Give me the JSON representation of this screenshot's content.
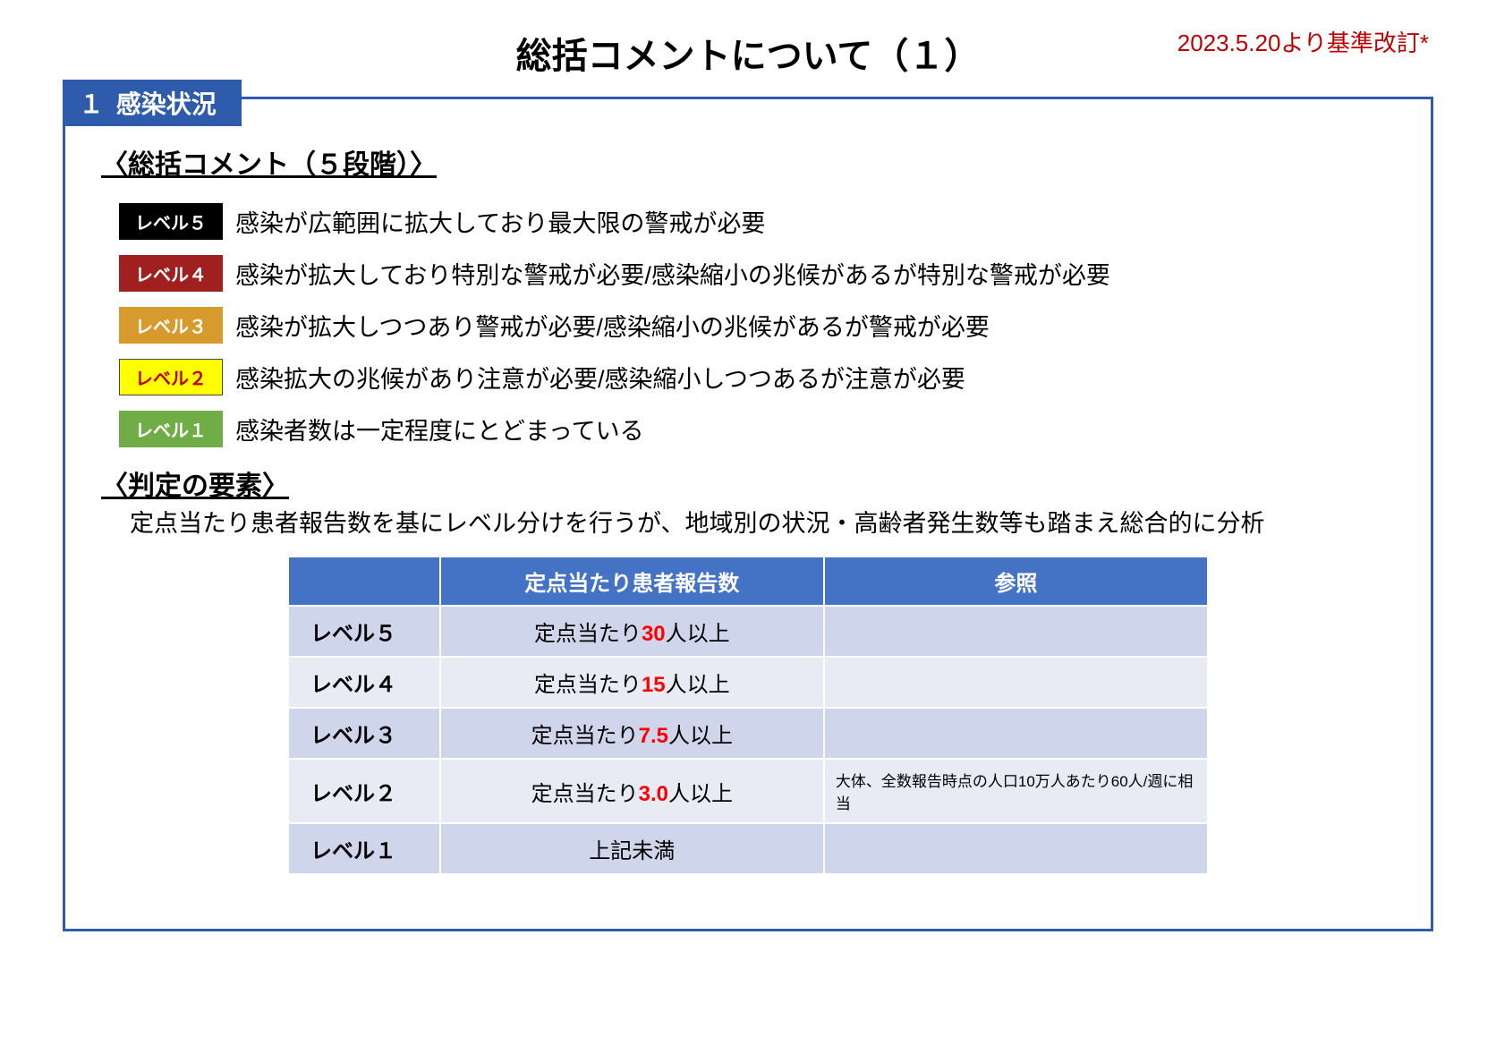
{
  "title": "総括コメントについて（１）",
  "top_note": "2023.5.20より基準改訂*",
  "section_tab": {
    "number": "１",
    "label": "感染状況"
  },
  "sub1": "〈総括コメント（５段階）〉",
  "levels": [
    {
      "name": "レベル５",
      "bg": "#000000",
      "fg": "#ffffff",
      "border": "#000000",
      "desc": "感染が広範囲に拡大しており最大限の警戒が必要"
    },
    {
      "name": "レベル４",
      "bg": "#a02020",
      "fg": "#ffffff",
      "border": "#a02020",
      "desc": "感染が拡大しており特別な警戒が必要/感染縮小の兆候があるが特別な警戒が必要"
    },
    {
      "name": "レベル３",
      "bg": "#d69a2d",
      "fg": "#ffffff",
      "border": "#d69a2d",
      "desc": "感染が拡大しつつあり警戒が必要/感染縮小の兆候があるが警戒が必要"
    },
    {
      "name": "レベル２",
      "bg": "#ffff00",
      "fg": "#c00000",
      "border": "#444444",
      "desc": "感染拡大の兆候があり注意が必要/感染縮小しつつあるが注意が必要"
    },
    {
      "name": "レベル１",
      "bg": "#70ad47",
      "fg": "#ffffff",
      "border": "#70ad47",
      "desc": "感染者数は一定程度にとどまっている"
    }
  ],
  "sub2": "〈判定の要素〉",
  "criteria_text": "定点当たり患者報告数を基にレベル分けを行うが、地域別の状況・高齢者発生数等も踏まえ総合的に分析",
  "table": {
    "headers": {
      "level": "",
      "criteria": "定点当たり患者報告数",
      "ref": "参照"
    },
    "col_widths": {
      "level": 170,
      "criteria": 430,
      "ref": 430
    },
    "rows": [
      {
        "label": "レベル５",
        "prefix": "定点当たり",
        "value": "30",
        "suffix": "人以上",
        "ref": ""
      },
      {
        "label": "レベル４",
        "prefix": "定点当たり",
        "value": "15",
        "suffix": "人以上",
        "ref": ""
      },
      {
        "label": "レベル３",
        "prefix": "定点当たり",
        "value": "7.5",
        "suffix": "人以上",
        "ref": ""
      },
      {
        "label": "レベル２",
        "prefix": "定点当たり",
        "value": "3.0",
        "suffix": "人以上",
        "ref": "大体、全数報告時点の人口10万人あたり60人/週に相当"
      },
      {
        "label": "レベル１",
        "prefix": "",
        "value": "",
        "suffix": "上記未満",
        "ref": ""
      }
    ]
  },
  "colors": {
    "frame_border": "#2e5bab",
    "tab_bg": "#2e5bab",
    "table_header_bg": "#4472c4",
    "row_odd_bg": "#cfd5ea",
    "row_even_bg": "#e8ebf4",
    "value_color": "#ff0000",
    "note_color": "#c00000"
  },
  "typography": {
    "title_fontsize": 40,
    "subheading_fontsize": 30,
    "level_desc_fontsize": 27,
    "badge_fontsize": 20,
    "table_fontsize": 24,
    "ref_note_fontsize": 17,
    "top_note_fontsize": 26
  }
}
